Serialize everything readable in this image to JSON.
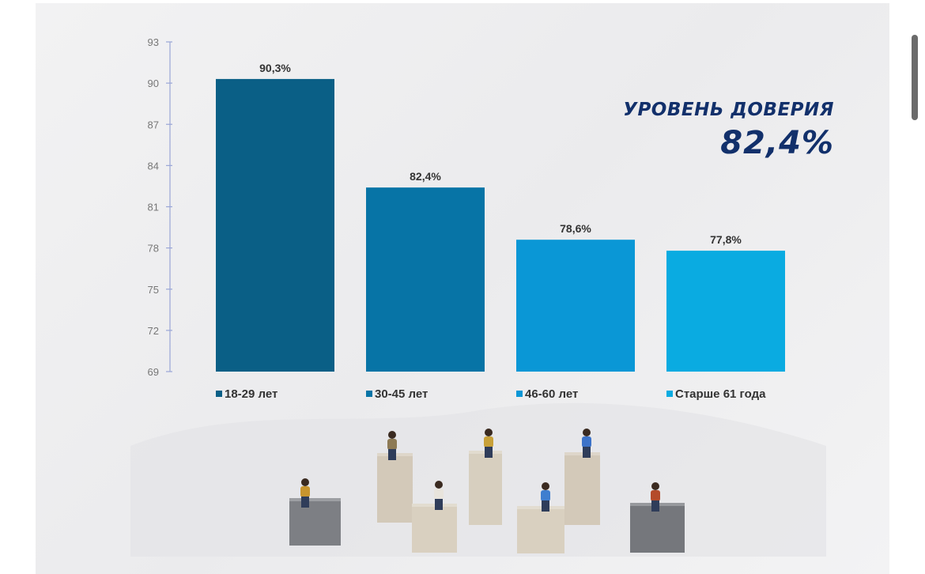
{
  "headline": {
    "label": "УРОВЕНЬ ДОВЕРИЯ",
    "value": "82,4%"
  },
  "colors": {
    "axis": "#9aa6d6",
    "tick_text": "#777777",
    "headline": "#12306b",
    "bar_18_29": "#0a5f86",
    "bar_30_45": "#0774a6",
    "bar_46_60": "#0a97d6",
    "bar_61_plus": "#0aabe1"
  },
  "chart_data": {
    "type": "bar",
    "categories": [
      "18-29 лет",
      "30-45 лет",
      "46-60 лет",
      "Старше 61 года"
    ],
    "values": [
      90.3,
      82.4,
      78.6,
      77.8
    ],
    "data_labels": [
      "90,3%",
      "82,4%",
      "78,6%",
      "77,8%"
    ],
    "ylim": [
      69,
      93
    ],
    "yticks": [
      69,
      72,
      75,
      78,
      81,
      84,
      87,
      90,
      93
    ],
    "legend": "bottom",
    "grid": false,
    "title": "",
    "xlabel": "",
    "ylabel": ""
  }
}
